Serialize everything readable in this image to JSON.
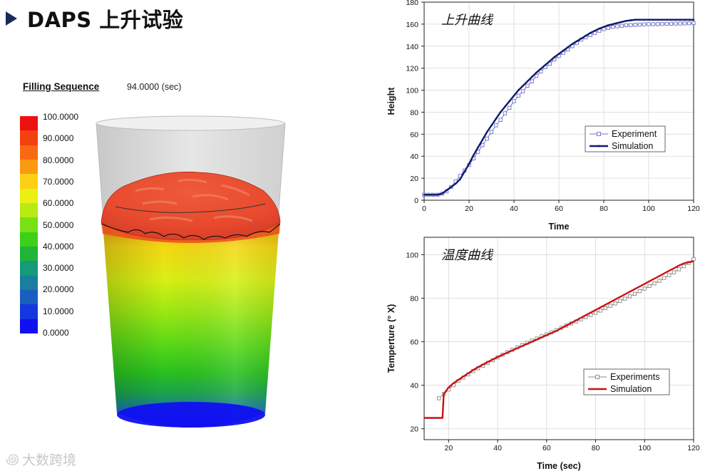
{
  "title": "DAPS 上升试验",
  "colors": {
    "title_marker": "#1a2a5e",
    "chart_line_1": "#0d1a6e",
    "chart_marker_1": "#7070c0",
    "chart_line_2": "#cc1111",
    "chart_marker_2": "#8a8a8a"
  },
  "simulation_panel": {
    "filling_label": "Filling Sequence",
    "time_value": "94.0000 (sec)",
    "legend_labels": [
      "100.0000",
      "90.0000",
      "80.0000",
      "70.0000",
      "60.0000",
      "50.0000",
      "40.0000",
      "30.0000",
      "20.0000",
      "10.0000",
      "0.0000"
    ],
    "legend_colors": [
      "#ee1010",
      "#f54010",
      "#f86a10",
      "#fb9a10",
      "#fdd016",
      "#e9f012",
      "#b8ea14",
      "#78e014",
      "#3ed018",
      "#20b43a",
      "#169a78",
      "#1a7e9e",
      "#1a5ec0",
      "#1438e0",
      "#1010f0"
    ]
  },
  "watermark": {
    "icon": "infinity-bubble-icon",
    "text": "大数跨境"
  },
  "chart_data": [
    {
      "type": "line",
      "title": "上升曲线",
      "xlabel": "Time",
      "ylabel": "Height",
      "xlim": [
        0,
        120
      ],
      "ylim": [
        0,
        180
      ],
      "xticks": [
        0,
        20,
        40,
        60,
        80,
        100,
        120
      ],
      "yticks": [
        0,
        20,
        40,
        60,
        80,
        100,
        120,
        140,
        160,
        180
      ],
      "grid": true,
      "legend_position": "lower-right",
      "series": [
        {
          "name": "Experiment",
          "marker": "square",
          "x": [
            0,
            2,
            4,
            6,
            8,
            10,
            12,
            14,
            16,
            18,
            20,
            22,
            24,
            26,
            28,
            30,
            32,
            34,
            36,
            38,
            40,
            42,
            44,
            46,
            48,
            50,
            52,
            54,
            56,
            58,
            60,
            62,
            64,
            66,
            68,
            70,
            72,
            74,
            76,
            78,
            80,
            82,
            84,
            86,
            88,
            90,
            92,
            94,
            96,
            98,
            100,
            102,
            104,
            106,
            108,
            110,
            112,
            114,
            116,
            118,
            120
          ],
          "y": [
            5,
            5,
            5,
            5,
            6,
            8,
            12,
            17,
            22,
            27,
            32,
            38,
            44,
            50,
            56,
            62,
            68,
            73,
            79,
            84,
            90,
            95,
            99,
            104,
            108,
            113,
            117,
            121,
            124,
            128,
            131,
            134,
            137,
            140,
            143,
            146,
            148,
            150,
            152,
            154,
            155.5,
            156.5,
            157.5,
            158,
            158.5,
            159,
            159.2,
            159.4,
            159.6,
            159.8,
            160,
            160,
            160,
            160.2,
            160.3,
            160.4,
            160.5,
            160.6,
            160.7,
            160.8,
            161
          ]
        },
        {
          "name": "Simulation",
          "marker": "dot",
          "x": [
            0,
            2,
            4,
            6,
            8,
            10,
            12,
            14,
            16,
            18,
            20,
            22,
            24,
            26,
            28,
            30,
            32,
            34,
            36,
            38,
            40,
            42,
            44,
            46,
            48,
            50,
            52,
            54,
            56,
            58,
            60,
            62,
            64,
            66,
            68,
            70,
            72,
            74,
            76,
            78,
            80,
            82,
            84,
            86,
            88,
            90,
            92,
            94,
            96,
            98,
            100,
            102,
            104,
            106,
            108,
            110,
            112,
            114,
            116,
            118,
            120
          ],
          "y": [
            5,
            5,
            5,
            5,
            6,
            9,
            12,
            15,
            19,
            26,
            33,
            41,
            48,
            55,
            62,
            68,
            74,
            80,
            85,
            90,
            95,
            100,
            104,
            108,
            112,
            116,
            119.5,
            123,
            126.5,
            130,
            133,
            136,
            139,
            142,
            144.5,
            147,
            149.5,
            152,
            154,
            156,
            157.5,
            159,
            160,
            161,
            162,
            163,
            163.5,
            164,
            164,
            164,
            164,
            164,
            164,
            164,
            164,
            164,
            164,
            164,
            164,
            164,
            164
          ]
        }
      ]
    },
    {
      "type": "line",
      "title": "温度曲线",
      "xlabel": "Time (sec)",
      "ylabel": "Temperture (° X)",
      "xlim": [
        10,
        120
      ],
      "ylim": [
        15,
        108
      ],
      "xticks": [
        20,
        40,
        60,
        80,
        100,
        120
      ],
      "yticks": [
        20,
        40,
        60,
        80,
        100
      ],
      "grid": true,
      "legend_position": "lower-right",
      "series": [
        {
          "name": "Experiments",
          "marker": "square",
          "x": [
            16,
            18,
            20,
            22,
            24,
            26,
            28,
            30,
            32,
            34,
            36,
            38,
            40,
            42,
            44,
            46,
            48,
            50,
            52,
            54,
            56,
            58,
            60,
            62,
            64,
            66,
            68,
            70,
            72,
            74,
            76,
            78,
            80,
            82,
            84,
            86,
            88,
            90,
            92,
            94,
            96,
            98,
            100,
            102,
            104,
            106,
            108,
            110,
            112,
            114,
            116,
            118,
            120
          ],
          "y": [
            34,
            36,
            38,
            40,
            42,
            43.5,
            45,
            46.5,
            47.8,
            49,
            50.3,
            51.5,
            52.8,
            54,
            55.2,
            56.3,
            57.4,
            58.5,
            59.5,
            60.5,
            61.5,
            62.5,
            63.4,
            64.4,
            65.4,
            66.4,
            67.4,
            68.4,
            69.3,
            70.3,
            71.3,
            72.3,
            73.3,
            74.3,
            75.4,
            76.5,
            77.6,
            78.7,
            79.8,
            80.9,
            82,
            83.2,
            84.4,
            85.6,
            86.8,
            88,
            89.3,
            90.6,
            91.9,
            93.3,
            94.7,
            96.2,
            98
          ]
        },
        {
          "name": "Simulation",
          "marker": "none",
          "x": [
            10,
            12,
            14,
            16,
            17.5,
            18,
            20,
            22,
            24,
            26,
            28,
            30,
            32,
            34,
            36,
            38,
            40,
            42,
            44,
            46,
            48,
            50,
            52,
            54,
            56,
            58,
            60,
            62,
            64,
            66,
            68,
            70,
            72,
            74,
            76,
            78,
            80,
            82,
            84,
            86,
            88,
            90,
            92,
            94,
            96,
            98,
            100,
            102,
            104,
            106,
            108,
            110,
            112,
            114,
            116,
            118,
            120
          ],
          "y": [
            25,
            25,
            25,
            25,
            25,
            36,
            39,
            41,
            42.5,
            44,
            45.5,
            47,
            48.3,
            49.5,
            50.7,
            51.8,
            53,
            54,
            55,
            56,
            57,
            58,
            59,
            60,
            61,
            62,
            63,
            64,
            65,
            66.2,
            67.4,
            68.6,
            69.8,
            71,
            72.2,
            73.4,
            74.6,
            75.8,
            77,
            78.2,
            79.4,
            80.6,
            81.8,
            83,
            84.2,
            85.4,
            86.6,
            87.8,
            89,
            90.2,
            91.4,
            92.6,
            93.8,
            95,
            96,
            96.5,
            97
          ]
        }
      ]
    }
  ]
}
